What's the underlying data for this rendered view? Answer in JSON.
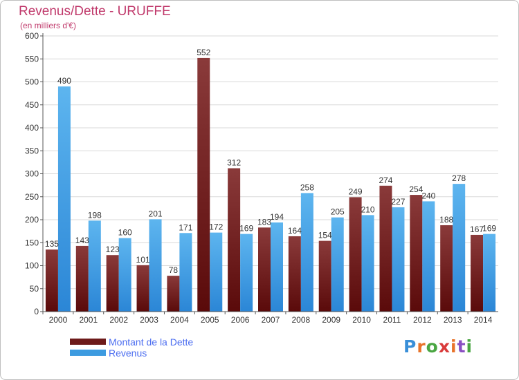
{
  "page": {
    "title": "Revenus/Dette - URUFFE",
    "subtitle": "(en milliers d'€)",
    "brand": "Proxiti"
  },
  "legend": [
    {
      "label": "Montant de la Dette",
      "color": "#6d1a1a"
    },
    {
      "label": "Revenus",
      "color": "#3d9be0"
    }
  ],
  "colors": {
    "dette_dark": "#5a0a0a",
    "dette_light": "#8a3a3a",
    "revenus_dark": "#2b86d6",
    "revenus_light": "#5db5ef",
    "grid": "#d8d8d8",
    "axis": "#555555",
    "label": "#333333"
  },
  "chart_data": {
    "type": "bar",
    "title": "Revenus/Dette - URUFFE",
    "subtitle": "(en milliers d'€)",
    "categories": [
      "2000",
      "2001",
      "2002",
      "2003",
      "2004",
      "2005",
      "2006",
      "2007",
      "2008",
      "2009",
      "2010",
      "2011",
      "2012",
      "2013",
      "2014"
    ],
    "series": [
      {
        "name": "Montant de la Dette",
        "values": [
          135,
          143,
          123,
          101,
          78,
          552,
          312,
          183,
          164,
          154,
          249,
          274,
          254,
          188,
          167
        ]
      },
      {
        "name": "Revenus",
        "values": [
          490,
          198,
          160,
          201,
          171,
          172,
          169,
          194,
          258,
          205,
          210,
          227,
          240,
          278,
          169
        ]
      }
    ],
    "ylim": [
      0,
      600
    ],
    "yticks": [
      0,
      50,
      100,
      150,
      200,
      250,
      300,
      350,
      400,
      450,
      500,
      550,
      600
    ],
    "grid": true,
    "legend_position": "bottom-left"
  }
}
